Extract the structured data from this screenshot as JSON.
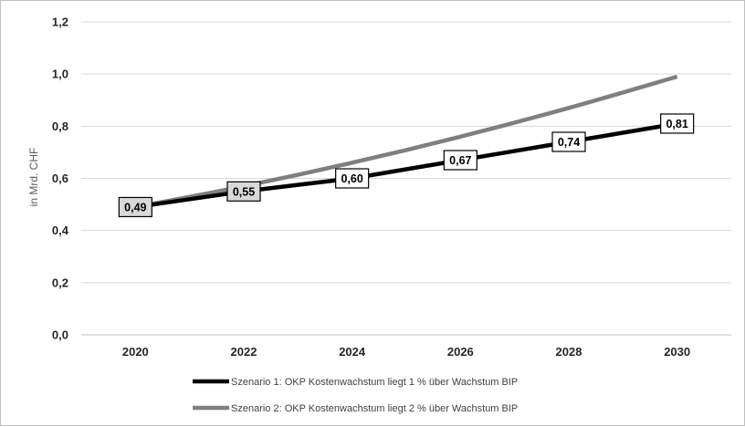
{
  "chart_data": {
    "type": "line",
    "title": "",
    "xlabel": "",
    "ylabel": "in Mrd. CHF",
    "x": [
      2020,
      2022,
      2024,
      2026,
      2028,
      2030
    ],
    "x_tick_labels": [
      "2020",
      "2022",
      "2024",
      "2026",
      "2028",
      "2030"
    ],
    "ylim": [
      0,
      1.2
    ],
    "y_tick_labels": [
      "0,0",
      "0,2",
      "0,4",
      "0,6",
      "0,8",
      "1,0",
      "1,2"
    ],
    "y_ticks": [
      0,
      0.2,
      0.4,
      0.6,
      0.8,
      1.0,
      1.2
    ],
    "grid": true,
    "legend_position": "bottom",
    "series": [
      {
        "name": "Szenario 1: OKP Kostenwachstum liegt 1 % über Wachstum BIP",
        "color": "#000000",
        "values": [
          0.49,
          0.55,
          0.6,
          0.67,
          0.74,
          0.81
        ],
        "labels": [
          "0,49",
          "0,55",
          "0,60",
          "0,67",
          "0,74",
          "0,81"
        ]
      },
      {
        "name": "Szenario 2: OKP Kostenwachstum liegt 2 % über Wachstum BIP",
        "color": "#7f7f7f",
        "values": [
          0.49,
          0.57,
          0.66,
          0.76,
          0.87,
          0.99
        ],
        "labels": []
      }
    ]
  }
}
